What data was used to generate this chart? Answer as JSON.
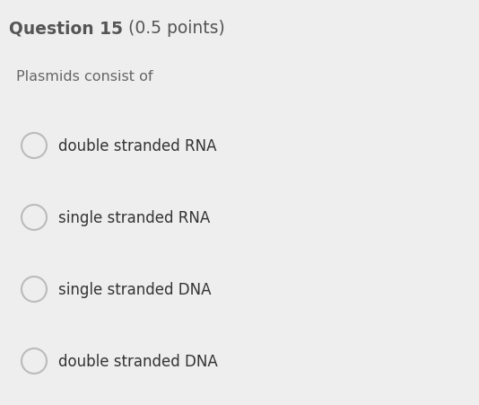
{
  "background_color": "#eeeeee",
  "title_bold": "Question 15",
  "title_normal": " (0.5 points)",
  "title_fontsize": 13.5,
  "title_color": "#555555",
  "subtitle": "Plasmids consist of",
  "subtitle_fontsize": 11.5,
  "subtitle_color": "#666666",
  "options": [
    "double stranded RNA",
    "single stranded RNA",
    "single stranded DNA",
    "double stranded DNA"
  ],
  "option_fontsize": 12,
  "option_color": "#333333",
  "circle_edge_color": "#bbbbbb",
  "circle_face_color": "#eeeeee",
  "fig_width": 5.34,
  "fig_height": 4.52,
  "dpi": 100
}
